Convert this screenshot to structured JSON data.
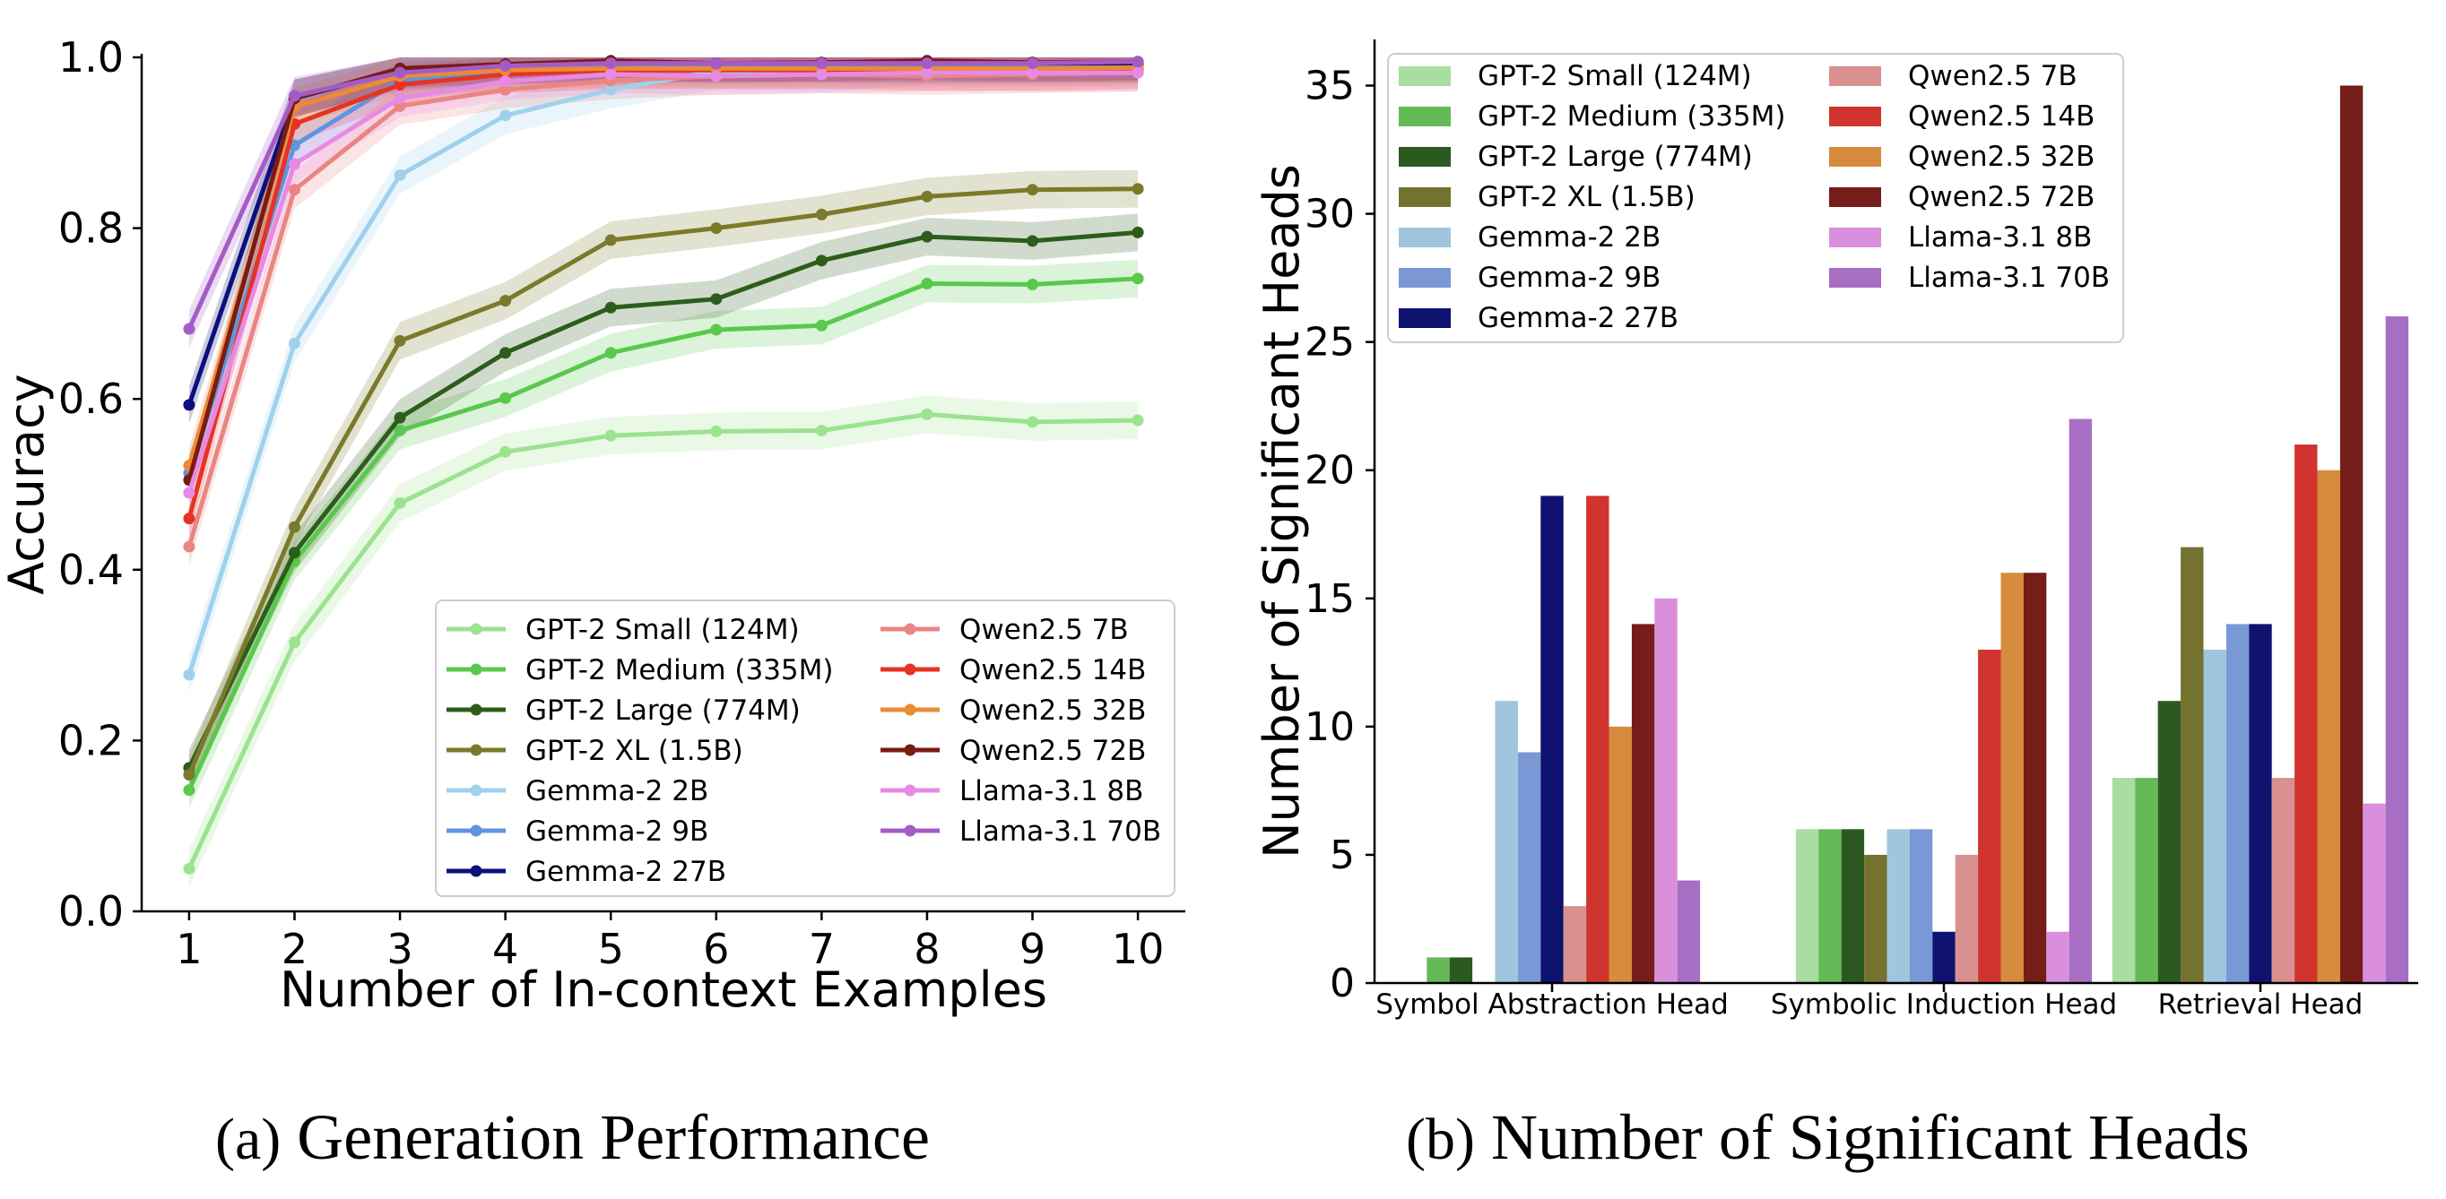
{
  "chart_data": [
    {
      "type": "line",
      "title": "",
      "xlabel": "Number of In-context Examples",
      "ylabel": "Accuracy",
      "xlim": [
        0.55,
        10.45
      ],
      "ylim": [
        0.0,
        1.0
      ],
      "x": [
        1,
        2,
        3,
        4,
        5,
        6,
        7,
        8,
        9,
        10
      ],
      "xticks": [
        "1",
        "2",
        "3",
        "4",
        "5",
        "6",
        "7",
        "8",
        "9",
        "10"
      ],
      "yticks": [
        "0.0",
        "0.2",
        "0.4",
        "0.6",
        "0.8",
        "1.0"
      ],
      "grid": false,
      "legend": "lower-right",
      "shaded_band": 0.022,
      "series": [
        {
          "name": "GPT-2 Small (124M)",
          "color": "#9be38f",
          "values": [
            0.05,
            0.315,
            0.478,
            0.538,
            0.557,
            0.562,
            0.563,
            0.582,
            0.573,
            0.575
          ]
        },
        {
          "name": "GPT-2 Medium (335M)",
          "color": "#5ac84c",
          "values": [
            0.142,
            0.41,
            0.563,
            0.601,
            0.654,
            0.681,
            0.686,
            0.735,
            0.734,
            0.741
          ]
        },
        {
          "name": "GPT-2 Large (774M)",
          "color": "#2d5d1b",
          "values": [
            0.168,
            0.42,
            0.578,
            0.654,
            0.707,
            0.717,
            0.762,
            0.79,
            0.785,
            0.795
          ]
        },
        {
          "name": "GPT-2 XL (1.5B)",
          "color": "#7b7a2a",
          "values": [
            0.16,
            0.45,
            0.668,
            0.715,
            0.786,
            0.8,
            0.816,
            0.837,
            0.845,
            0.846
          ]
        },
        {
          "name": "Gemma-2 2B",
          "color": "#9fd1ec",
          "values": [
            0.277,
            0.665,
            0.862,
            0.932,
            0.962,
            0.984,
            0.982,
            0.99,
            0.99,
            0.99
          ]
        },
        {
          "name": "Gemma-2 9B",
          "color": "#5f95dc",
          "values": [
            0.513,
            0.897,
            0.973,
            0.985,
            0.99,
            0.99,
            0.99,
            0.99,
            0.99,
            0.992
          ]
        },
        {
          "name": "Gemma-2 27B",
          "color": "#0c107a",
          "values": [
            0.593,
            0.952,
            0.985,
            0.991,
            0.993,
            0.993,
            0.993,
            0.993,
            0.993,
            0.993
          ]
        },
        {
          "name": "Qwen2.5 7B",
          "color": "#e98583",
          "values": [
            0.427,
            0.845,
            0.943,
            0.962,
            0.973,
            0.978,
            0.98,
            0.978,
            0.98,
            0.982
          ]
        },
        {
          "name": "Qwen2.5 14B",
          "color": "#e63323",
          "values": [
            0.46,
            0.922,
            0.968,
            0.98,
            0.985,
            0.985,
            0.985,
            0.983,
            0.983,
            0.985
          ]
        },
        {
          "name": "Qwen2.5 32B",
          "color": "#ec8a36",
          "values": [
            0.522,
            0.942,
            0.978,
            0.985,
            0.987,
            0.987,
            0.987,
            0.987,
            0.987,
            0.988
          ]
        },
        {
          "name": "Qwen2.5 72B",
          "color": "#7a1b14",
          "values": [
            0.505,
            0.952,
            0.987,
            0.992,
            0.996,
            0.993,
            0.994,
            0.996,
            0.994,
            0.995
          ]
        },
        {
          "name": "Llama-3.1 8B",
          "color": "#e68ae3",
          "values": [
            0.49,
            0.875,
            0.952,
            0.972,
            0.98,
            0.978,
            0.98,
            0.982,
            0.982,
            0.982
          ]
        },
        {
          "name": "Llama-3.1 70B",
          "color": "#a55bc6",
          "values": [
            0.682,
            0.955,
            0.982,
            0.99,
            0.993,
            0.993,
            0.993,
            0.993,
            0.993,
            0.995
          ]
        }
      ]
    },
    {
      "type": "bar",
      "title": "",
      "xlabel": "",
      "ylabel": "Number of Significant Heads",
      "ylim": [
        0,
        36.8
      ],
      "yticks": [
        "0",
        "5",
        "10",
        "15",
        "20",
        "25",
        "30",
        "35"
      ],
      "categories": [
        "Symbol Abstraction Head",
        "Symbolic Induction Head",
        "Retrieval Head"
      ],
      "grid": false,
      "legend": "top-left",
      "series": [
        {
          "name": "GPT-2 Small (124M)",
          "color": "#a8dea0",
          "values": [
            0,
            6,
            8
          ]
        },
        {
          "name": "GPT-2 Medium (335M)",
          "color": "#66b957",
          "values": [
            1,
            6,
            8
          ]
        },
        {
          "name": "GPT-2 Large (774M)",
          "color": "#2b591f",
          "values": [
            1,
            6,
            11
          ]
        },
        {
          "name": "GPT-2 XL (1.5B)",
          "color": "#74722f",
          "values": [
            0,
            5,
            17
          ]
        },
        {
          "name": "Gemma-2 2B",
          "color": "#9fc6dc",
          "values": [
            11,
            6,
            13
          ]
        },
        {
          "name": "Gemma-2 9B",
          "color": "#7a98d6",
          "values": [
            9,
            6,
            14
          ]
        },
        {
          "name": "Gemma-2 27B",
          "color": "#0f126e",
          "values": [
            19,
            2,
            14
          ]
        },
        {
          "name": "Qwen2.5 7B",
          "color": "#d99090",
          "values": [
            3,
            5,
            8
          ]
        },
        {
          "name": "Qwen2.5 14B",
          "color": "#d0342e",
          "values": [
            19,
            13,
            21
          ]
        },
        {
          "name": "Qwen2.5 32B",
          "color": "#d68c3c",
          "values": [
            10,
            16,
            20
          ]
        },
        {
          "name": "Qwen2.5 72B",
          "color": "#751d19",
          "values": [
            14,
            16,
            35
          ]
        },
        {
          "name": "Llama-3.1 8B",
          "color": "#da8fdc",
          "values": [
            15,
            2,
            7
          ]
        },
        {
          "name": "Llama-3.1 70B",
          "color": "#a86ec4",
          "values": [
            4,
            22,
            26
          ]
        }
      ]
    }
  ],
  "captions": {
    "a_label": "(a)",
    "a_text": "Generation Performance",
    "b_label": "(b)",
    "b_text": "Number of Significant Heads"
  }
}
